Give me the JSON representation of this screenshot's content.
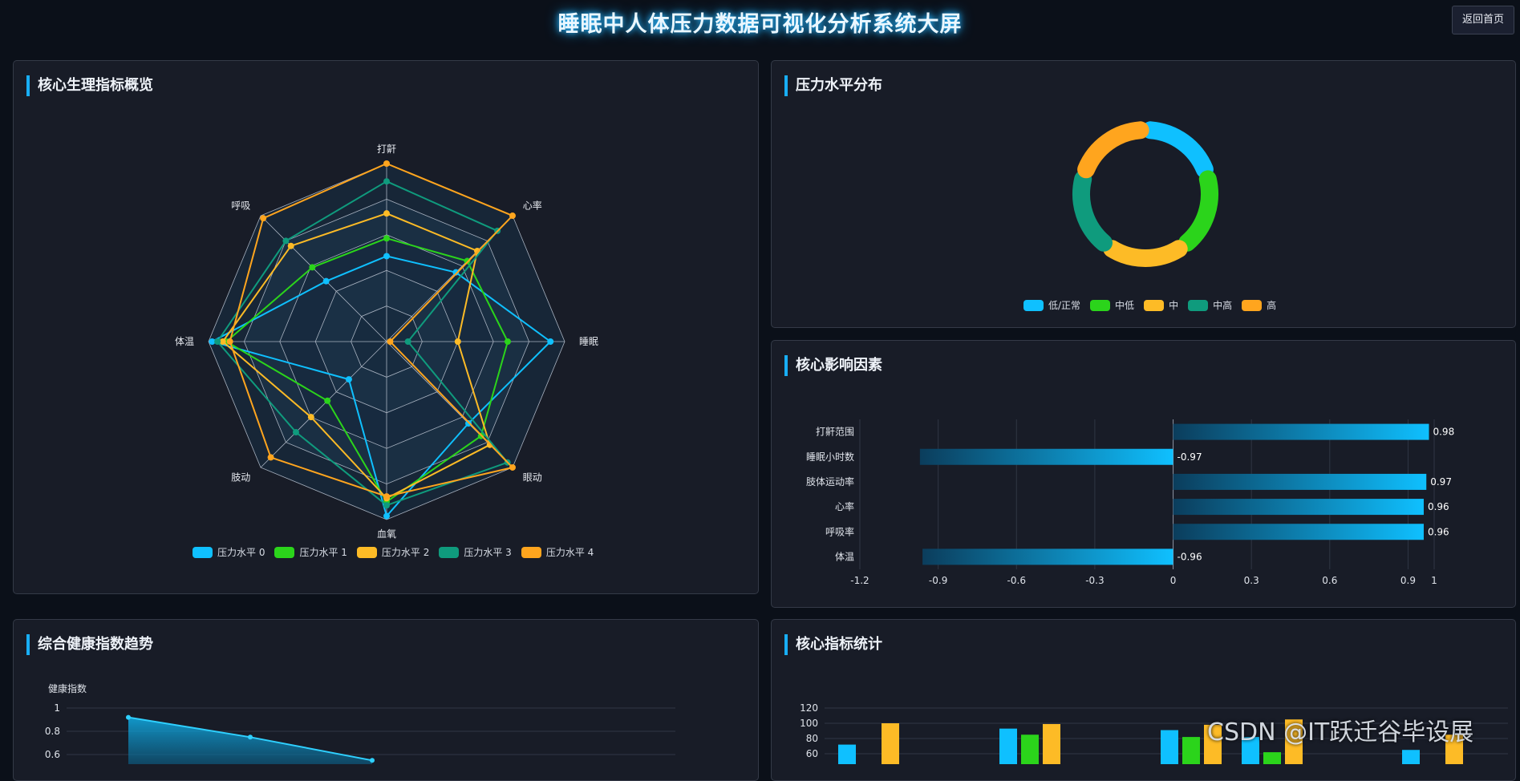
{
  "header": {
    "title": "睡眠中人体压力数据可视化分析系统大屏",
    "home_button": "返回首页"
  },
  "panels": {
    "radar": {
      "title": "核心生理指标概览"
    },
    "donut": {
      "title": "压力水平分布"
    },
    "factors": {
      "title": "核心影响因素"
    },
    "trend": {
      "title": "综合健康指数趋势"
    },
    "stats": {
      "title": "核心指标统计"
    }
  },
  "watermark": "CSDN @IT跃迁谷毕设展",
  "colors": {
    "level0": "#0fc0ff",
    "level1": "#2bd41b",
    "level2": "#fdbb26",
    "level3": "#0f9b7d",
    "level4": "#ffa51e",
    "accent": "#18aef5"
  },
  "chart_data": [
    {
      "type": "radar",
      "indicators": [
        "打鼾",
        "心率",
        "睡眠",
        "眼动",
        "血氧",
        "肢动",
        "体温",
        "呼吸"
      ],
      "series": [
        {
          "name": "压力水平 0",
          "values": [
            0.48,
            0.55,
            0.92,
            0.65,
            0.98,
            0.3,
            0.98,
            0.48
          ]
        },
        {
          "name": "压力水平 1",
          "values": [
            0.58,
            0.64,
            0.68,
            0.75,
            0.9,
            0.47,
            0.9,
            0.59
          ]
        },
        {
          "name": "压力水平 2",
          "values": [
            0.72,
            0.72,
            0.4,
            0.82,
            0.88,
            0.6,
            0.92,
            0.76
          ]
        },
        {
          "name": "压力水平 3",
          "values": [
            0.9,
            0.88,
            0.12,
            0.96,
            0.92,
            0.72,
            0.95,
            0.8
          ]
        },
        {
          "name": "压力水平 4",
          "values": [
            1.0,
            1.0,
            0.02,
            1.0,
            0.87,
            0.92,
            0.88,
            0.98
          ]
        }
      ],
      "max": 1
    },
    {
      "type": "pie",
      "categories": [
        "低/正常",
        "中低",
        "中",
        "中高",
        "高"
      ],
      "values": [
        20,
        20,
        20,
        20,
        20
      ]
    },
    {
      "type": "bar",
      "categories": [
        "体温",
        "呼吸率",
        "心率",
        "肢体运动率",
        "睡眠小时数",
        "打鼾范围"
      ],
      "values": [
        -0.96,
        0.96,
        0.96,
        0.97,
        -0.97,
        0.98
      ],
      "xlim": [
        -1.2,
        1
      ],
      "xticks": [
        "-1.2",
        "-0.9",
        "-0.6",
        "-0.3",
        "0",
        "0.3",
        "0.6",
        "0.9",
        "1"
      ]
    },
    {
      "type": "area",
      "ylabel": "健康指数",
      "yticks": [
        "1",
        "0.8",
        "0.6"
      ],
      "values": [
        0.92,
        0.75,
        0.55
      ]
    },
    {
      "type": "bar",
      "yticks": [
        "120",
        "100",
        "80",
        "60"
      ],
      "series": [
        {
          "name": "压力水平 0",
          "values": [
            72,
            93,
            91,
            82,
            65
          ]
        },
        {
          "name": "压力水平 1",
          "values": [
            0,
            85,
            82,
            62,
            0
          ]
        },
        {
          "name": "压力水平 2",
          "values": [
            100,
            99,
            98,
            105,
            85
          ]
        }
      ]
    }
  ]
}
